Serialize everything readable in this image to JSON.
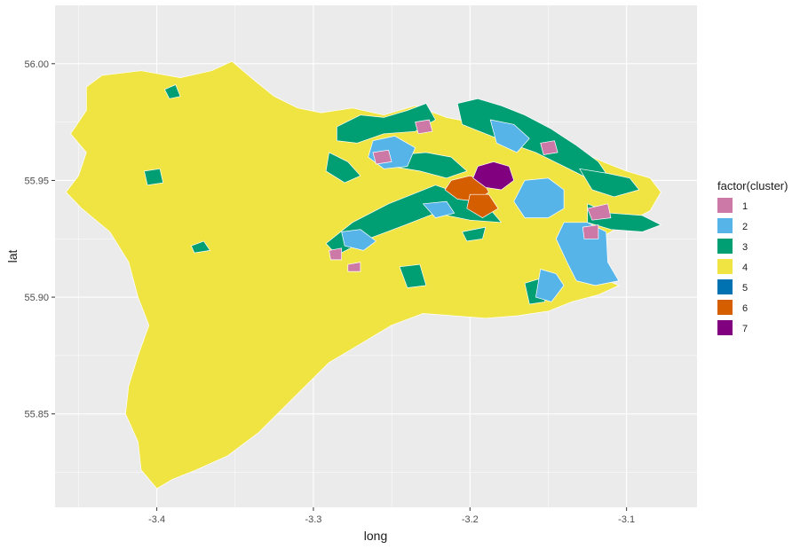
{
  "chart_data": {
    "type": "choropleth-map",
    "xlabel": "long",
    "ylabel": "lat",
    "xlim": [
      -3.465,
      -3.055
    ],
    "ylim": [
      55.81,
      56.025
    ],
    "x_ticks": [
      {
        "value": -3.4,
        "label": "-3.4"
      },
      {
        "value": -3.3,
        "label": "-3.3"
      },
      {
        "value": -3.2,
        "label": "-3.2"
      },
      {
        "value": -3.1,
        "label": "-3.1"
      }
    ],
    "y_ticks": [
      {
        "value": 55.85,
        "label": "55.85"
      },
      {
        "value": 55.9,
        "label": "55.90"
      },
      {
        "value": 55.95,
        "label": "55.95"
      },
      {
        "value": 56.0,
        "label": "56.00"
      }
    ],
    "grid": true,
    "legend": {
      "title": "factor(cluster)",
      "placement": "right",
      "items": [
        {
          "label": "1",
          "color": "#CC79A7"
        },
        {
          "label": "2",
          "color": "#56B4E9"
        },
        {
          "label": "3",
          "color": "#009E73"
        },
        {
          "label": "4",
          "color": "#F0E442"
        },
        {
          "label": "5",
          "color": "#0072B2"
        },
        {
          "label": "6",
          "color": "#D55E00"
        },
        {
          "label": "7",
          "color": "#800080"
        }
      ]
    },
    "panel_background": "#EBEBEB",
    "grid_color": "#FFFFFF",
    "boundary_color": "#FFFFFF",
    "regions": [
      {
        "cluster": "4",
        "outline": [
          [
            -3.435,
            55.995
          ],
          [
            -3.41,
            55.997
          ],
          [
            -3.385,
            55.994
          ],
          [
            -3.365,
            55.997
          ],
          [
            -3.352,
            56.001
          ],
          [
            -3.338,
            55.993
          ],
          [
            -3.325,
            55.986
          ],
          [
            -3.31,
            55.981
          ],
          [
            -3.295,
            55.979
          ],
          [
            -3.275,
            55.981
          ],
          [
            -3.255,
            55.978
          ],
          [
            -3.235,
            55.982
          ],
          [
            -3.215,
            55.977
          ],
          [
            -3.2,
            55.975
          ],
          [
            -3.185,
            55.978
          ],
          [
            -3.17,
            55.976
          ],
          [
            -3.155,
            55.972
          ],
          [
            -3.14,
            55.967
          ],
          [
            -3.128,
            55.962
          ],
          [
            -3.115,
            55.958
          ],
          [
            -3.1,
            55.954
          ],
          [
            -3.085,
            55.951
          ],
          [
            -3.078,
            55.945
          ],
          [
            -3.085,
            55.937
          ],
          [
            -3.1,
            55.932
          ],
          [
            -3.115,
            55.926
          ],
          [
            -3.125,
            55.916
          ],
          [
            -3.118,
            55.909
          ],
          [
            -3.105,
            55.905
          ],
          [
            -3.118,
            55.901
          ],
          [
            -3.135,
            55.898
          ],
          [
            -3.15,
            55.894
          ],
          [
            -3.17,
            55.892
          ],
          [
            -3.19,
            55.891
          ],
          [
            -3.21,
            55.892
          ],
          [
            -3.23,
            55.893
          ],
          [
            -3.25,
            55.888
          ],
          [
            -3.265,
            55.882
          ],
          [
            -3.29,
            55.872
          ],
          [
            -3.305,
            55.862
          ],
          [
            -3.32,
            55.852
          ],
          [
            -3.335,
            55.842
          ],
          [
            -3.355,
            55.832
          ],
          [
            -3.375,
            55.826
          ],
          [
            -3.39,
            55.822
          ],
          [
            -3.4,
            55.818
          ],
          [
            -3.41,
            55.826
          ],
          [
            -3.412,
            55.838
          ],
          [
            -3.42,
            55.85
          ],
          [
            -3.418,
            55.862
          ],
          [
            -3.412,
            55.875
          ],
          [
            -3.405,
            55.888
          ],
          [
            -3.412,
            55.9
          ],
          [
            -3.418,
            55.915
          ],
          [
            -3.43,
            55.928
          ],
          [
            -3.448,
            55.938
          ],
          [
            -3.458,
            55.945
          ],
          [
            -3.45,
            55.952
          ],
          [
            -3.445,
            55.962
          ],
          [
            -3.455,
            55.97
          ],
          [
            -3.445,
            55.98
          ],
          [
            -3.445,
            55.99
          ]
        ]
      },
      {
        "cluster": "3",
        "outline": [
          [
            -3.285,
            55.973
          ],
          [
            -3.27,
            55.978
          ],
          [
            -3.255,
            55.977
          ],
          [
            -3.24,
            55.98
          ],
          [
            -3.228,
            55.983
          ],
          [
            -3.222,
            55.976
          ],
          [
            -3.235,
            55.971
          ],
          [
            -3.255,
            55.97
          ],
          [
            -3.272,
            55.966
          ],
          [
            -3.285,
            55.967
          ]
        ]
      },
      {
        "cluster": "3",
        "outline": [
          [
            -3.208,
            55.983
          ],
          [
            -3.195,
            55.985
          ],
          [
            -3.18,
            55.982
          ],
          [
            -3.165,
            55.978
          ],
          [
            -3.148,
            55.972
          ],
          [
            -3.132,
            55.965
          ],
          [
            -3.118,
            55.958
          ],
          [
            -3.112,
            55.952
          ],
          [
            -3.125,
            55.951
          ],
          [
            -3.14,
            55.956
          ],
          [
            -3.158,
            55.962
          ],
          [
            -3.175,
            55.966
          ],
          [
            -3.19,
            55.97
          ],
          [
            -3.205,
            55.974
          ]
        ]
      },
      {
        "cluster": "3",
        "outline": [
          [
            -3.258,
            55.965
          ],
          [
            -3.245,
            55.961
          ],
          [
            -3.228,
            55.962
          ],
          [
            -3.212,
            55.96
          ],
          [
            -3.202,
            55.954
          ],
          [
            -3.215,
            55.951
          ],
          [
            -3.232,
            55.954
          ],
          [
            -3.25,
            55.956
          ],
          [
            -3.26,
            55.959
          ]
        ]
      },
      {
        "cluster": "3",
        "outline": [
          [
            -3.222,
            55.948
          ],
          [
            -3.205,
            55.944
          ],
          [
            -3.19,
            55.94
          ],
          [
            -3.18,
            55.932
          ],
          [
            -3.2,
            55.933
          ],
          [
            -3.222,
            55.936
          ],
          [
            -3.245,
            55.93
          ],
          [
            -3.265,
            55.925
          ],
          [
            -3.285,
            55.918
          ],
          [
            -3.292,
            55.923
          ],
          [
            -3.275,
            55.932
          ],
          [
            -3.252,
            55.94
          ]
        ]
      },
      {
        "cluster": "3",
        "outline": [
          [
            -3.29,
            55.962
          ],
          [
            -3.278,
            55.958
          ],
          [
            -3.27,
            55.952
          ],
          [
            -3.28,
            55.949
          ],
          [
            -3.292,
            55.954
          ]
        ]
      },
      {
        "cluster": "3",
        "outline": [
          [
            -3.13,
            55.955
          ],
          [
            -3.112,
            55.953
          ],
          [
            -3.098,
            55.951
          ],
          [
            -3.092,
            55.946
          ],
          [
            -3.108,
            55.943
          ],
          [
            -3.122,
            55.946
          ]
        ]
      },
      {
        "cluster": "3",
        "outline": [
          [
            -3.125,
            55.94
          ],
          [
            -3.11,
            55.936
          ],
          [
            -3.09,
            55.935
          ],
          [
            -3.078,
            55.931
          ],
          [
            -3.09,
            55.928
          ],
          [
            -3.11,
            55.929
          ],
          [
            -3.125,
            55.932
          ]
        ]
      },
      {
        "cluster": "3",
        "outline": [
          [
            -3.395,
            55.989
          ],
          [
            -3.388,
            55.991
          ],
          [
            -3.385,
            55.986
          ],
          [
            -3.392,
            55.985
          ]
        ]
      },
      {
        "cluster": "3",
        "outline": [
          [
            -3.408,
            55.954
          ],
          [
            -3.398,
            55.955
          ],
          [
            -3.396,
            55.949
          ],
          [
            -3.406,
            55.948
          ]
        ]
      },
      {
        "cluster": "3",
        "outline": [
          [
            -3.378,
            55.922
          ],
          [
            -3.37,
            55.924
          ],
          [
            -3.366,
            55.92
          ],
          [
            -3.376,
            55.919
          ]
        ]
      },
      {
        "cluster": "3",
        "outline": [
          [
            -3.245,
            55.913
          ],
          [
            -3.232,
            55.914
          ],
          [
            -3.228,
            55.905
          ],
          [
            -3.24,
            55.904
          ]
        ]
      },
      {
        "cluster": "3",
        "outline": [
          [
            -3.165,
            55.906
          ],
          [
            -3.155,
            55.908
          ],
          [
            -3.152,
            55.898
          ],
          [
            -3.162,
            55.897
          ]
        ]
      },
      {
        "cluster": "3",
        "outline": [
          [
            -3.205,
            55.928
          ],
          [
            -3.19,
            55.93
          ],
          [
            -3.192,
            55.925
          ],
          [
            -3.202,
            55.924
          ]
        ]
      },
      {
        "cluster": "2",
        "outline": [
          [
            -3.262,
            55.967
          ],
          [
            -3.248,
            55.969
          ],
          [
            -3.235,
            55.964
          ],
          [
            -3.24,
            55.956
          ],
          [
            -3.255,
            55.955
          ],
          [
            -3.265,
            55.96
          ]
        ]
      },
      {
        "cluster": "2",
        "outline": [
          [
            -3.187,
            55.976
          ],
          [
            -3.172,
            55.974
          ],
          [
            -3.162,
            55.968
          ],
          [
            -3.17,
            55.962
          ],
          [
            -3.183,
            55.966
          ]
        ]
      },
      {
        "cluster": "2",
        "outline": [
          [
            -3.165,
            55.95
          ],
          [
            -3.15,
            55.951
          ],
          [
            -3.14,
            55.946
          ],
          [
            -3.14,
            55.938
          ],
          [
            -3.15,
            55.934
          ],
          [
            -3.165,
            55.934
          ],
          [
            -3.172,
            55.941
          ]
        ]
      },
      {
        "cluster": "2",
        "outline": [
          [
            -3.14,
            55.932
          ],
          [
            -3.125,
            55.932
          ],
          [
            -3.113,
            55.928
          ],
          [
            -3.112,
            55.915
          ],
          [
            -3.105,
            55.907
          ],
          [
            -3.12,
            55.905
          ],
          [
            -3.132,
            55.907
          ],
          [
            -3.138,
            55.915
          ],
          [
            -3.145,
            55.925
          ]
        ]
      },
      {
        "cluster": "2",
        "outline": [
          [
            -3.155,
            55.912
          ],
          [
            -3.145,
            55.91
          ],
          [
            -3.14,
            55.905
          ],
          [
            -3.148,
            55.898
          ],
          [
            -3.158,
            55.9
          ]
        ]
      },
      {
        "cluster": "2",
        "outline": [
          [
            -3.282,
            55.928
          ],
          [
            -3.27,
            55.929
          ],
          [
            -3.26,
            55.924
          ],
          [
            -3.268,
            55.92
          ],
          [
            -3.28,
            55.922
          ]
        ]
      },
      {
        "cluster": "2",
        "outline": [
          [
            -3.23,
            55.94
          ],
          [
            -3.215,
            55.941
          ],
          [
            -3.21,
            55.936
          ],
          [
            -3.222,
            55.934
          ]
        ]
      },
      {
        "cluster": "1",
        "outline": [
          [
            -3.262,
            55.962
          ],
          [
            -3.252,
            55.963
          ],
          [
            -3.25,
            55.958
          ],
          [
            -3.26,
            55.957
          ]
        ]
      },
      {
        "cluster": "1",
        "outline": [
          [
            -3.235,
            55.975
          ],
          [
            -3.226,
            55.976
          ],
          [
            -3.224,
            55.971
          ],
          [
            -3.233,
            55.97
          ]
        ]
      },
      {
        "cluster": "1",
        "outline": [
          [
            -3.155,
            55.966
          ],
          [
            -3.146,
            55.967
          ],
          [
            -3.144,
            55.962
          ],
          [
            -3.153,
            55.961
          ]
        ]
      },
      {
        "cluster": "1",
        "outline": [
          [
            -3.125,
            55.938
          ],
          [
            -3.112,
            55.94
          ],
          [
            -3.11,
            55.934
          ],
          [
            -3.122,
            55.933
          ]
        ]
      },
      {
        "cluster": "1",
        "outline": [
          [
            -3.128,
            55.93
          ],
          [
            -3.118,
            55.931
          ],
          [
            -3.118,
            55.925
          ],
          [
            -3.127,
            55.925
          ]
        ]
      },
      {
        "cluster": "1",
        "outline": [
          [
            -3.29,
            55.92
          ],
          [
            -3.282,
            55.921
          ],
          [
            -3.282,
            55.916
          ],
          [
            -3.289,
            55.916
          ]
        ]
      },
      {
        "cluster": "1",
        "outline": [
          [
            -3.278,
            55.914
          ],
          [
            -3.27,
            55.915
          ],
          [
            -3.27,
            55.911
          ],
          [
            -3.278,
            55.911
          ]
        ]
      },
      {
        "cluster": "6",
        "outline": [
          [
            -3.212,
            55.95
          ],
          [
            -3.2,
            55.952
          ],
          [
            -3.192,
            55.95
          ],
          [
            -3.188,
            55.945
          ],
          [
            -3.196,
            55.941
          ],
          [
            -3.208,
            55.942
          ],
          [
            -3.216,
            55.946
          ]
        ]
      },
      {
        "cluster": "6",
        "outline": [
          [
            -3.2,
            55.944
          ],
          [
            -3.188,
            55.944
          ],
          [
            -3.182,
            55.938
          ],
          [
            -3.192,
            55.934
          ],
          [
            -3.202,
            55.938
          ]
        ]
      },
      {
        "cluster": "7",
        "outline": [
          [
            -3.195,
            55.956
          ],
          [
            -3.185,
            55.958
          ],
          [
            -3.175,
            55.956
          ],
          [
            -3.172,
            55.95
          ],
          [
            -3.18,
            55.946
          ],
          [
            -3.19,
            55.947
          ],
          [
            -3.198,
            55.951
          ]
        ]
      }
    ]
  }
}
